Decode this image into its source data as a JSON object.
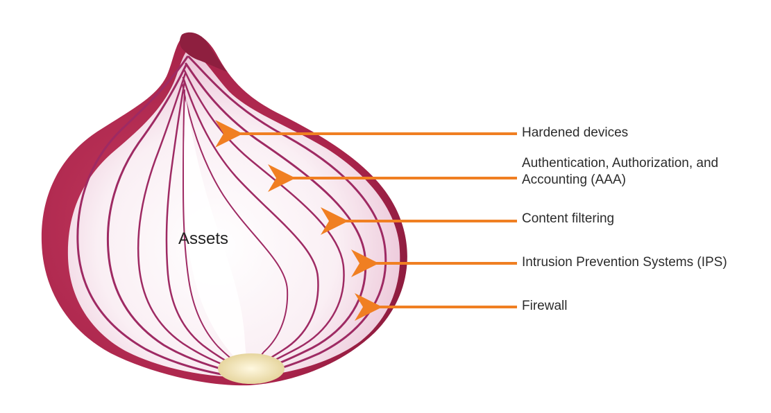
{
  "diagram": {
    "center_label": "Assets",
    "layers": [
      {
        "label": "Hardened devices",
        "label_line2": ""
      },
      {
        "label": "Authentication, Authorization, and",
        "label_line2": "Accounting (AAA)"
      },
      {
        "label": "Content filtering",
        "label_line2": ""
      },
      {
        "label": "Intrusion Prevention Systems (IPS)",
        "label_line2": ""
      },
      {
        "label": "Firewall",
        "label_line2": ""
      }
    ],
    "arrow_color": "#F07F22",
    "onion_colors": {
      "outer_skin": "#B5294F",
      "ring": "#9E2A63",
      "flesh": "#F6E4EE",
      "core": "#FFFFFF",
      "root": "#EFE2B8"
    }
  }
}
